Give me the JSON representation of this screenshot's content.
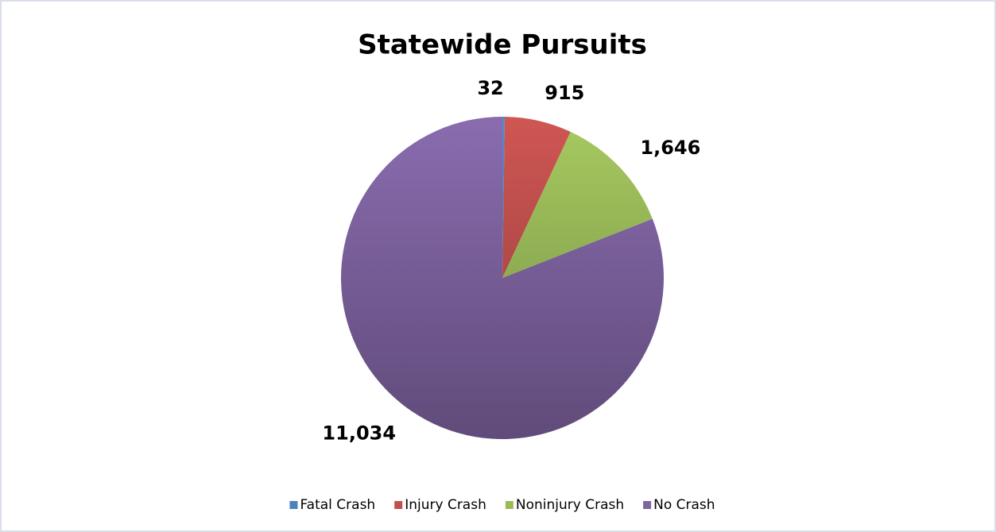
{
  "chart_data": {
    "type": "pie",
    "title": "Statewide Pursuits",
    "categories": [
      "Fatal Crash",
      "Injury Crash",
      "Noninjury Crash",
      "No Crash"
    ],
    "values": [
      32,
      915,
      1646,
      11034
    ],
    "value_labels": [
      "32",
      "915",
      "1,646",
      "11,034"
    ],
    "colors": [
      "#4f81bd",
      "#c0504d",
      "#9bbb59",
      "#8064a2"
    ],
    "legend": "bottom"
  }
}
